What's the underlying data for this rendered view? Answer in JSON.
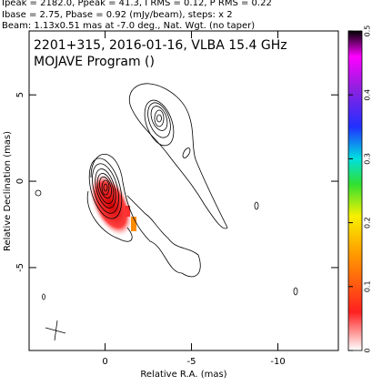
{
  "chart_data": {
    "type": "image",
    "header": [
      "Ipeak = 2182.0, Ppeak = 41.3, I RMS = 0.12, P RMS = 0.22",
      "Ibase = 2.75, Pbase = 0.92 (mJy/beam), steps: x 2",
      "Beam: 1.13x0.51 mas at -7.0 deg., Nat. Wgt. (no taper)"
    ],
    "title": "2201+315, 2016-01-16, VLBA 15.4 GHz",
    "subtitle": "MOJAVE Program ()",
    "x_label": "Relative R.A. (mas)",
    "y_label": "Relative Declination (mas)",
    "xlim": [
      4.4,
      -13.5
    ],
    "xticks": [
      0,
      -5,
      -10
    ],
    "ylim": [
      -9.8,
      8.7
    ],
    "yticks": [
      5,
      0,
      -5
    ],
    "colorbar_lim": [
      0,
      0.5
    ],
    "colorbar_ticks": [
      0,
      0.1,
      0.2,
      0.3,
      0.4,
      0.5
    ]
  }
}
